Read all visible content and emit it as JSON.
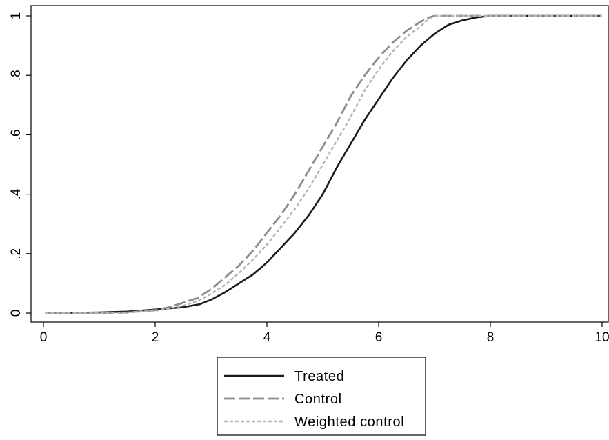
{
  "chart_data": {
    "type": "line",
    "title": "",
    "xlabel": "",
    "ylabel": "",
    "xlim": [
      0,
      10
    ],
    "ylim": [
      0,
      1
    ],
    "x_ticks": [
      0,
      2,
      4,
      6,
      8,
      10
    ],
    "x_tick_labels": [
      "0",
      "2",
      "4",
      "6",
      "8",
      "10"
    ],
    "y_ticks": [
      0,
      0.2,
      0.4,
      0.6,
      0.8,
      1
    ],
    "y_tick_labels": [
      "0",
      ".2",
      ".4",
      ".6",
      ".8",
      "1"
    ],
    "grid": false,
    "legend_position": "bottom-center",
    "series": [
      {
        "name": "Treated",
        "style": "solid",
        "color": "#1a1a1a",
        "x": [
          0.03,
          1.0,
          1.5,
          2.0,
          2.5,
          2.8,
          3.0,
          3.25,
          3.5,
          3.75,
          4.0,
          4.25,
          4.5,
          4.75,
          5.0,
          5.25,
          5.5,
          5.75,
          6.0,
          6.25,
          6.5,
          6.75,
          7.0,
          7.25,
          7.5,
          7.75,
          8.0,
          10.0
        ],
        "y": [
          0.0,
          0.002,
          0.005,
          0.012,
          0.02,
          0.03,
          0.045,
          0.07,
          0.1,
          0.13,
          0.17,
          0.22,
          0.27,
          0.33,
          0.4,
          0.49,
          0.57,
          0.65,
          0.72,
          0.79,
          0.85,
          0.9,
          0.94,
          0.97,
          0.985,
          0.995,
          1.0,
          1.0
        ]
      },
      {
        "name": "Control",
        "style": "long-dash",
        "color": "#8c8c8c",
        "x": [
          0.03,
          1.0,
          1.5,
          2.0,
          2.25,
          2.5,
          2.75,
          3.0,
          3.25,
          3.5,
          3.75,
          4.0,
          4.25,
          4.5,
          4.75,
          5.0,
          5.25,
          5.5,
          5.75,
          6.0,
          6.25,
          6.5,
          6.75,
          6.9,
          7.0,
          10.0
        ],
        "y": [
          0.0,
          0.0,
          0.002,
          0.01,
          0.02,
          0.035,
          0.05,
          0.08,
          0.12,
          0.16,
          0.21,
          0.27,
          0.33,
          0.4,
          0.48,
          0.56,
          0.64,
          0.73,
          0.8,
          0.86,
          0.91,
          0.95,
          0.98,
          0.995,
          1.0,
          1.0
        ]
      },
      {
        "name": "Weighted control",
        "style": "short-dash",
        "color": "#b4b4b4",
        "x": [
          0.03,
          1.0,
          1.5,
          2.0,
          2.25,
          2.5,
          2.75,
          3.0,
          3.25,
          3.5,
          3.75,
          4.0,
          4.25,
          4.5,
          4.75,
          5.0,
          5.25,
          5.5,
          5.75,
          6.0,
          6.25,
          6.5,
          6.75,
          6.9,
          7.0,
          10.0
        ],
        "y": [
          0.0,
          0.0,
          0.002,
          0.008,
          0.015,
          0.025,
          0.04,
          0.065,
          0.095,
          0.135,
          0.18,
          0.23,
          0.29,
          0.35,
          0.42,
          0.5,
          0.58,
          0.66,
          0.75,
          0.82,
          0.88,
          0.93,
          0.965,
          0.99,
          1.0,
          1.0
        ]
      }
    ]
  }
}
